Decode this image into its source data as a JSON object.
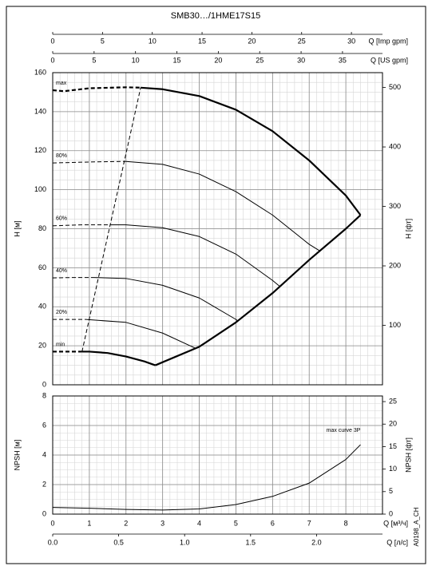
{
  "title": "SMB30…/1HME17S15",
  "code": "A0198_A_CH",
  "chart_data": [
    {
      "type": "line",
      "ylabel": "H [м]",
      "y2label": "H [фт]",
      "xlim": [
        0,
        9
      ],
      "xticks": [
        0,
        1,
        2,
        3,
        4,
        5,
        6,
        7,
        8
      ],
      "ylim": [
        0,
        160
      ],
      "yticks": [
        0,
        20,
        40,
        60,
        80,
        100,
        120,
        140,
        160
      ],
      "y2lim": [
        0,
        524.93
      ],
      "y2ticks": [
        100,
        200,
        300,
        400,
        500
      ],
      "grid": true,
      "top_axes": [
        {
          "label": "Q [Imp gpm]",
          "lim": [
            0,
            33.12
          ],
          "ticks": [
            0,
            5,
            10,
            15,
            20,
            25,
            30
          ]
        },
        {
          "label": "Q [US gpm]",
          "lim": [
            0,
            39.83
          ],
          "ticks": [
            0,
            5,
            10,
            15,
            20,
            25,
            30,
            35
          ]
        }
      ],
      "series": [
        {
          "name": "max",
          "color": "#000000",
          "dashed": true,
          "bold": true,
          "x": [
            0,
            0.3,
            1,
            2,
            2.4
          ],
          "values": [
            151,
            150.5,
            152,
            152.5,
            152.3
          ]
        },
        {
          "color": "#000000",
          "dashed": false,
          "bold": true,
          "x": [
            2.4,
            3,
            4,
            5,
            6,
            7,
            8,
            8.4
          ],
          "values": [
            152.3,
            151.5,
            148,
            141,
            130,
            115,
            97,
            87
          ]
        },
        {
          "name": "80%",
          "color": "#000000",
          "dashed": true,
          "bold": false,
          "x": [
            0,
            1,
            2
          ],
          "values": [
            113.7,
            114.2,
            114.5
          ]
        },
        {
          "color": "#000000",
          "dashed": false,
          "bold": false,
          "x": [
            2,
            3,
            4,
            5,
            6,
            7,
            7.3
          ],
          "values": [
            114.5,
            113,
            108,
            99,
            87,
            72,
            68.5
          ]
        },
        {
          "name": "60%",
          "color": "#000000",
          "dashed": true,
          "bold": false,
          "x": [
            0,
            0.8,
            1.6
          ],
          "values": [
            81.5,
            82,
            82
          ]
        },
        {
          "color": "#000000",
          "dashed": false,
          "bold": false,
          "x": [
            1.6,
            2,
            3,
            4,
            5,
            6,
            6.2
          ],
          "values": [
            82,
            82,
            80.5,
            76,
            67,
            53.5,
            50.4
          ]
        },
        {
          "name": "40%",
          "color": "#000000",
          "dashed": true,
          "bold": false,
          "x": [
            0,
            0.6,
            1.1
          ],
          "values": [
            54.8,
            55,
            55
          ]
        },
        {
          "color": "#000000",
          "dashed": false,
          "bold": false,
          "x": [
            1.1,
            2,
            3,
            4,
            5,
            5.05
          ],
          "values": [
            55,
            54.5,
            51,
            44.5,
            33.5,
            32.8
          ]
        },
        {
          "name": "20%",
          "color": "#000000",
          "dashed": true,
          "bold": false,
          "x": [
            0,
            0.5,
            0.9
          ],
          "values": [
            33.5,
            33.5,
            33.5
          ]
        },
        {
          "color": "#000000",
          "dashed": false,
          "bold": false,
          "x": [
            0.9,
            2,
            3,
            3.9
          ],
          "values": [
            33.5,
            32,
            26.5,
            18.7
          ]
        },
        {
          "name": "min",
          "color": "#000000",
          "dashed": true,
          "bold": true,
          "x": [
            0,
            0.4,
            0.8
          ],
          "values": [
            17,
            17,
            17
          ]
        },
        {
          "color": "#000000",
          "dashed": false,
          "bold": true,
          "x": [
            0.8,
            1,
            1.5,
            2,
            2.5,
            2.8
          ],
          "values": [
            17,
            17,
            16.3,
            14.5,
            12,
            10
          ]
        },
        {
          "color": "#000000",
          "dashed": false,
          "bold": true,
          "x": [
            2.8,
            4,
            5,
            6,
            7,
            8,
            8.4
          ],
          "values": [
            10,
            19.5,
            32,
            47,
            64,
            80,
            87
          ]
        },
        {
          "color": "#000000",
          "dashed": true,
          "bold": false,
          "x": [
            0.8,
            2.4
          ],
          "values": [
            17,
            152.3
          ]
        }
      ]
    },
    {
      "type": "line",
      "ylabel": "NPSH [м]",
      "y2label": "NPSH [фт]",
      "xlabel": "Q [м³/ч]",
      "xlim": [
        0,
        9
      ],
      "xticks": [
        0,
        1,
        2,
        3,
        4,
        5,
        6,
        7,
        8
      ],
      "ylim": [
        0,
        8
      ],
      "yticks": [
        0,
        2,
        4,
        6,
        8
      ],
      "y2lim": [
        0,
        26.25
      ],
      "y2ticks": [
        0,
        5,
        10,
        15,
        20,
        25
      ],
      "grid": true,
      "bottom_axis": {
        "label": "Q [л/с]",
        "lim": [
          0,
          2.5
        ],
        "ticks": [
          {
            "value": 0,
            "label": "0.0"
          },
          0.5,
          {
            "value": 1,
            "label": "1.0"
          },
          1.5,
          {
            "value": 2,
            "label": "2.0"
          }
        ]
      },
      "series": [
        {
          "name": "max curve 3P",
          "color": "#000000",
          "dashed": false,
          "bold": false,
          "x": [
            0,
            1,
            2,
            3,
            4,
            5,
            6,
            7,
            8,
            8.4
          ],
          "values": [
            0.45,
            0.4,
            0.32,
            0.28,
            0.35,
            0.65,
            1.2,
            2.1,
            3.7,
            4.7
          ]
        }
      ]
    }
  ]
}
